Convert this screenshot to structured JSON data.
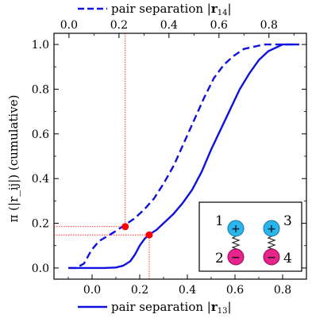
{
  "chart_data": {
    "type": "line",
    "ylabel": "π (|r_ij|) (cumulative)",
    "ylim": [
      -0.05,
      1.05
    ],
    "bottom_axis": {
      "label_prefix": "pair separation |",
      "label_bold": "r",
      "label_sub": "13",
      "label_suffix": "|",
      "xlim": [
        -0.16,
        0.9
      ],
      "ticks": [
        "0.0",
        "0.2",
        "0.4",
        "0.6",
        "0.8"
      ]
    },
    "top_axis": {
      "label_prefix": "pair separation |",
      "label_bold": "r",
      "label_sub": "14",
      "label_suffix": "|",
      "xlim": [
        -0.06,
        0.95
      ],
      "ticks": [
        "0.0",
        "0.2",
        "0.4",
        "0.6",
        "0.8"
      ]
    },
    "y_ticks": [
      "0.0",
      "0.2",
      "0.4",
      "0.6",
      "0.8",
      "1.0"
    ],
    "series": [
      {
        "style": "solid",
        "axis": "bottom",
        "color": "#1010e0",
        "x": [
          -0.1,
          0.0,
          0.05,
          0.1,
          0.13,
          0.16,
          0.18,
          0.2,
          0.22,
          0.24,
          0.27,
          0.3,
          0.34,
          0.38,
          0.42,
          0.46,
          0.5,
          0.54,
          0.58,
          0.62,
          0.66,
          0.7,
          0.74,
          0.78,
          0.8,
          0.84,
          0.87
        ],
        "y": [
          0.0,
          0.0,
          0.0,
          0.002,
          0.01,
          0.03,
          0.06,
          0.1,
          0.13,
          0.15,
          0.17,
          0.2,
          0.24,
          0.29,
          0.35,
          0.43,
          0.53,
          0.62,
          0.71,
          0.8,
          0.87,
          0.93,
          0.97,
          0.99,
          1.0,
          1.0,
          1.0
        ]
      },
      {
        "style": "dashed",
        "axis": "top",
        "color": "#1010e0",
        "x": [
          0.0,
          0.03,
          0.06,
          0.09,
          0.12,
          0.15,
          0.18,
          0.22,
          0.26,
          0.3,
          0.34,
          0.38,
          0.42,
          0.46,
          0.5,
          0.54,
          0.58,
          0.62,
          0.66,
          0.7,
          0.74,
          0.78,
          0.82,
          0.86,
          0.9
        ],
        "y": [
          0.0,
          0.0,
          0.02,
          0.08,
          0.12,
          0.14,
          0.16,
          0.19,
          0.22,
          0.26,
          0.31,
          0.38,
          0.46,
          0.56,
          0.66,
          0.76,
          0.85,
          0.91,
          0.95,
          0.98,
          0.99,
          1.0,
          1.0,
          1.0,
          1.0
        ]
      }
    ],
    "markers": [
      {
        "axis": "top",
        "x": 0.225,
        "y": 0.185,
        "color": "#ff0000"
      },
      {
        "axis": "bottom",
        "x": 0.24,
        "y": 0.148,
        "color": "#ff0000"
      }
    ],
    "inset": {
      "labels": [
        "1",
        "2",
        "3",
        "4"
      ],
      "charges": [
        "+",
        "−",
        "+",
        "−"
      ],
      "positive_color": "#29b6ea",
      "negative_color": "#e8248c"
    }
  }
}
